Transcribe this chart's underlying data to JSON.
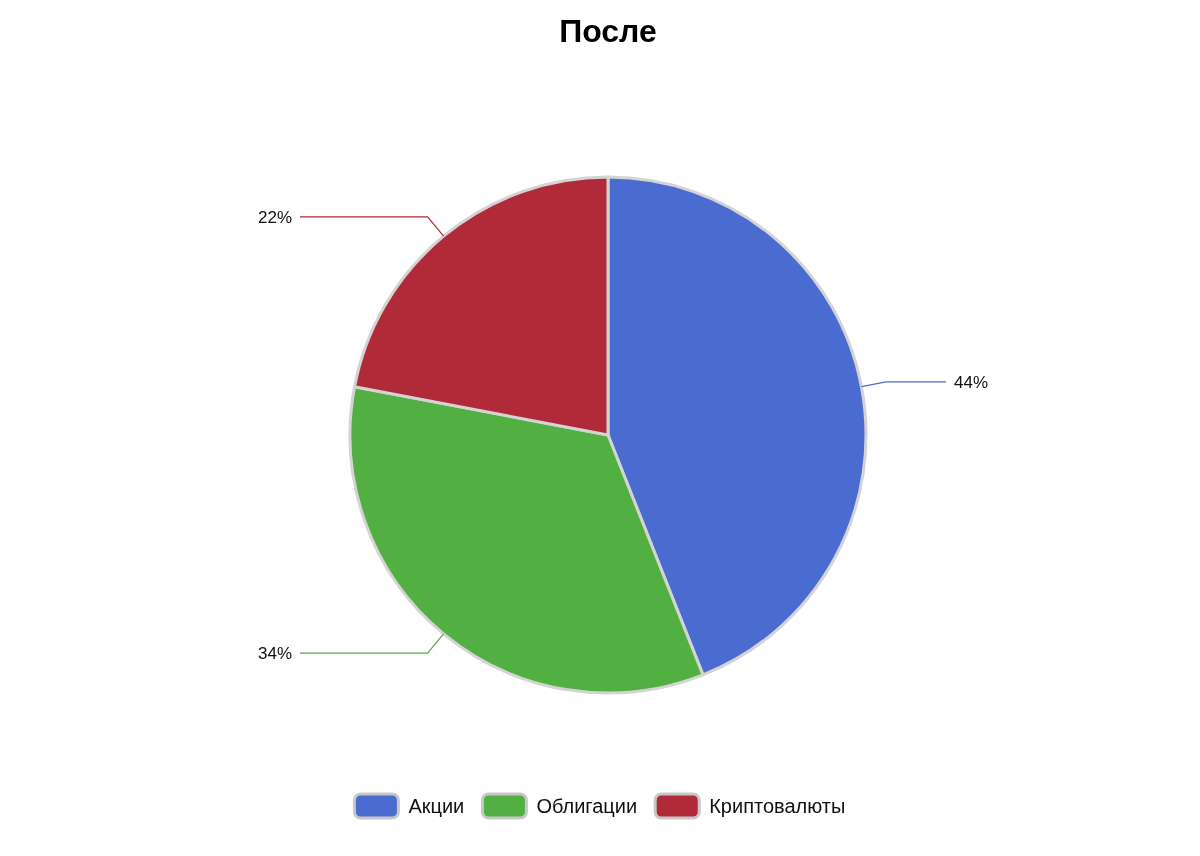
{
  "chart_data": {
    "type": "pie",
    "title": "После",
    "categories": [
      "Акции",
      "Облигации",
      "Криптовалюты"
    ],
    "values": [
      44,
      34,
      22
    ],
    "colors": [
      "#4a6bd0",
      "#52b043",
      "#b02a3a"
    ],
    "value_labels": [
      "44%",
      "34%",
      "22%"
    ],
    "legend": "bottom"
  }
}
